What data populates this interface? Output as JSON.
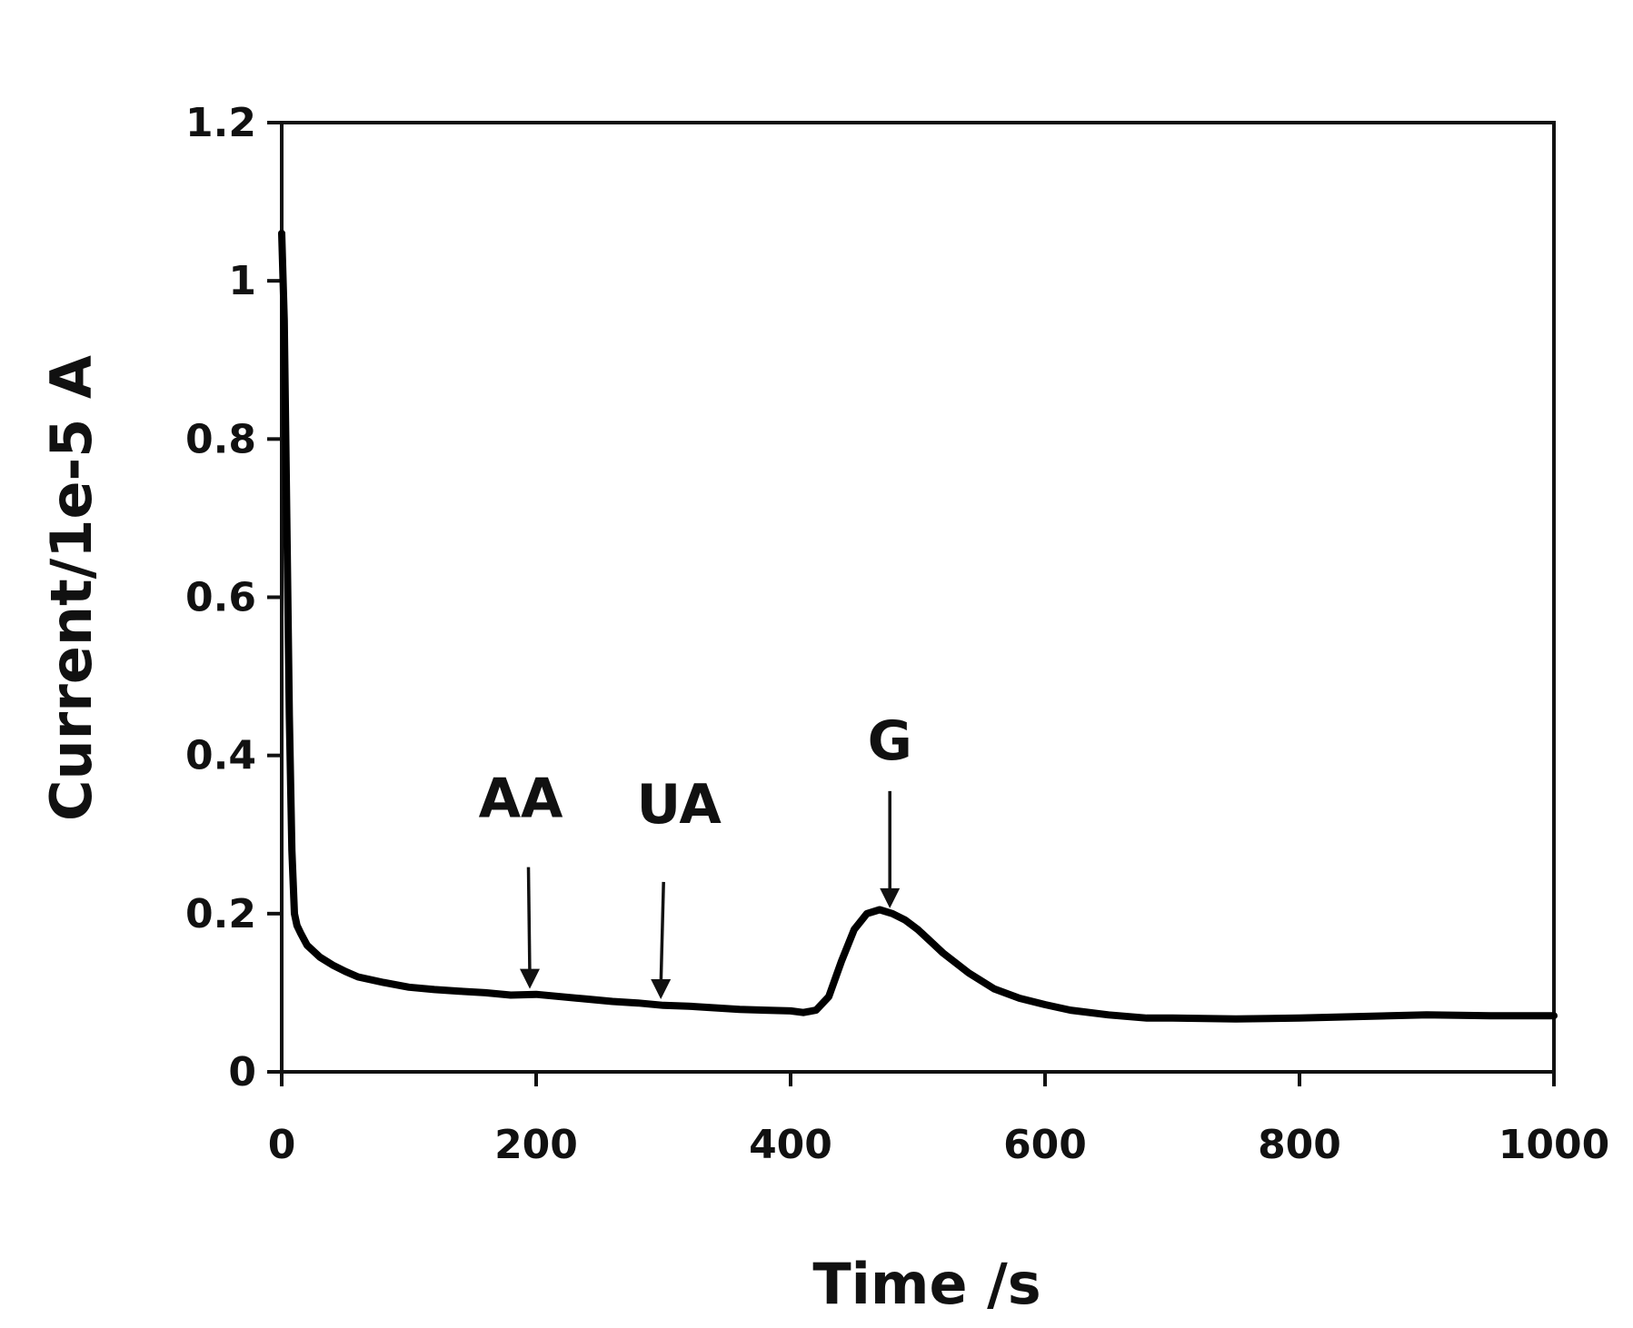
{
  "chart_data": {
    "type": "line",
    "title": "",
    "xlabel": "Time /s",
    "ylabel": "Current/1e-5 A",
    "xlim": [
      0,
      1000
    ],
    "ylim": [
      0,
      1.2
    ],
    "xticks": [
      0,
      200,
      400,
      600,
      800,
      1000
    ],
    "yticks": [
      0,
      0.2,
      0.4,
      0.6,
      0.8,
      1,
      1.2
    ],
    "xtick_labels": [
      "0",
      "200",
      "400",
      "600",
      "800",
      "1000"
    ],
    "ytick_labels": [
      "0",
      "0.2",
      "0.4",
      "0.6",
      "0.8",
      "1",
      "1.2"
    ],
    "grid": false,
    "line_color": "#000000",
    "series": [
      {
        "x": [
          0,
          2,
          4,
          6,
          8,
          10,
          12,
          15,
          20,
          30,
          40,
          50,
          60,
          80,
          100,
          120,
          140,
          160,
          180,
          200,
          220,
          240,
          260,
          280,
          300,
          320,
          340,
          360,
          380,
          400,
          410,
          420,
          430,
          440,
          450,
          460,
          470,
          480,
          490,
          500,
          510,
          520,
          540,
          560,
          580,
          600,
          620,
          650,
          680,
          700,
          750,
          800,
          850,
          900,
          950,
          1000
        ],
        "y": [
          1.06,
          0.95,
          0.7,
          0.45,
          0.28,
          0.2,
          0.185,
          0.175,
          0.16,
          0.145,
          0.135,
          0.127,
          0.12,
          0.113,
          0.107,
          0.104,
          0.102,
          0.1,
          0.097,
          0.098,
          0.095,
          0.092,
          0.089,
          0.087,
          0.084,
          0.083,
          0.081,
          0.079,
          0.078,
          0.077,
          0.075,
          0.078,
          0.095,
          0.14,
          0.18,
          0.2,
          0.205,
          0.2,
          0.192,
          0.18,
          0.165,
          0.15,
          0.125,
          0.105,
          0.093,
          0.085,
          0.078,
          0.072,
          0.068,
          0.068,
          0.067,
          0.068,
          0.07,
          0.072,
          0.071,
          0.071
        ]
      }
    ],
    "annotations": [
      {
        "label": "AA",
        "x": 195,
        "y": 0.098
      },
      {
        "label": "UA",
        "x": 298,
        "y": 0.085
      },
      {
        "label": "G",
        "x": 478,
        "y": 0.2
      }
    ]
  }
}
